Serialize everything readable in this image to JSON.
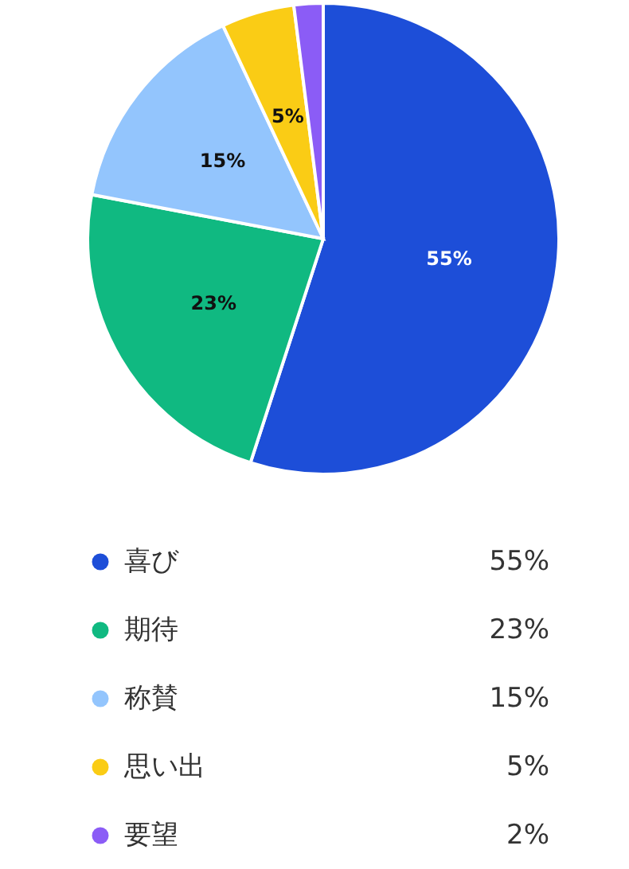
{
  "chart_data": {
    "type": "pie",
    "categories": [
      "喜び",
      "期待",
      "称賛",
      "思い出",
      "要望"
    ],
    "values": [
      55,
      23,
      15,
      5,
      2
    ],
    "colors": [
      "#1d4ed8",
      "#10b981",
      "#93c5fd",
      "#facc15",
      "#8b5cf6"
    ],
    "value_labels": [
      "55%",
      "23%",
      "15%",
      "5%",
      "2%"
    ],
    "legend": "bottom"
  }
}
